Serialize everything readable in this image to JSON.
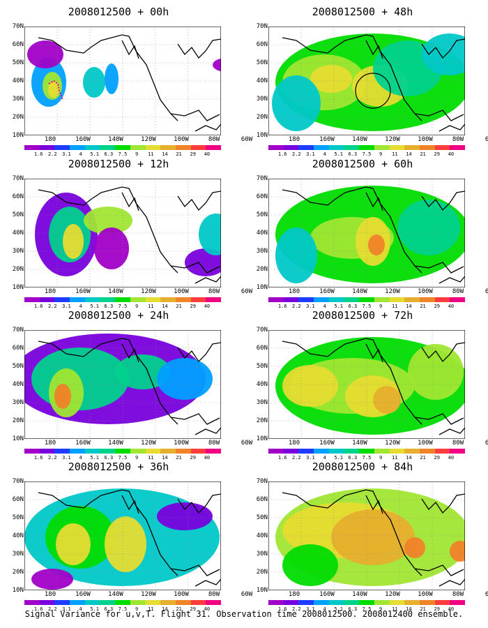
{
  "panels": [
    {
      "title": "2008012500 + 00h"
    },
    {
      "title": "2008012500 + 48h"
    },
    {
      "title": "2008012500 + 12h"
    },
    {
      "title": "2008012500 + 60h"
    },
    {
      "title": "2008012500 + 24h"
    },
    {
      "title": "2008012500 + 72h"
    },
    {
      "title": "2008012500 + 36h"
    },
    {
      "title": "2008012500 + 84h"
    }
  ],
  "lat_labels": [
    "70N",
    "60N",
    "50N",
    "40N",
    "30N",
    "20N",
    "10N"
  ],
  "lon_labels": [
    "180",
    "160W",
    "140W",
    "120W",
    "100W",
    "80W",
    "60W"
  ],
  "colorbar": {
    "labels": [
      "1.6",
      "2.2",
      "3.1",
      "4",
      "5.1",
      "6.3",
      "7.5",
      "9",
      "11",
      "14",
      "21",
      "29",
      "40"
    ],
    "colors": [
      "#a000c8",
      "#7800dc",
      "#1e3cff",
      "#00a0ff",
      "#00c8c8",
      "#00d28c",
      "#00dc00",
      "#a0e632",
      "#e6dc32",
      "#e6af2d",
      "#f08228",
      "#fa3c3c",
      "#f00082"
    ]
  },
  "footer": "Signal Variance for u,v,T. Flight 31. Observation time 2008012500. 2008012400 ensemble."
}
